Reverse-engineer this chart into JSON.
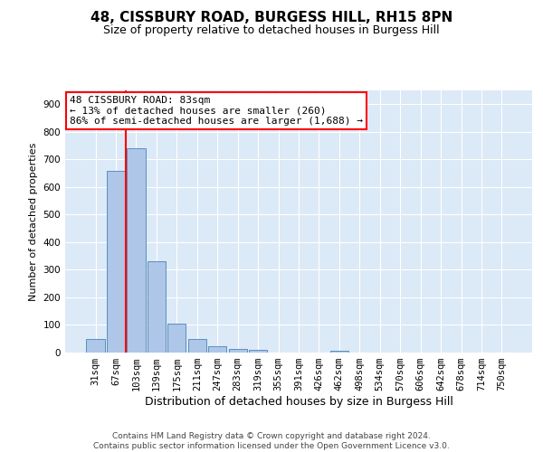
{
  "title": "48, CISSBURY ROAD, BURGESS HILL, RH15 8PN",
  "subtitle": "Size of property relative to detached houses in Burgess Hill",
  "xlabel": "Distribution of detached houses by size in Burgess Hill",
  "ylabel": "Number of detached properties",
  "categories": [
    "31sqm",
    "67sqm",
    "103sqm",
    "139sqm",
    "175sqm",
    "211sqm",
    "247sqm",
    "283sqm",
    "319sqm",
    "355sqm",
    "391sqm",
    "426sqm",
    "462sqm",
    "498sqm",
    "534sqm",
    "570sqm",
    "606sqm",
    "642sqm",
    "678sqm",
    "714sqm",
    "750sqm"
  ],
  "values": [
    48,
    660,
    740,
    330,
    105,
    48,
    22,
    13,
    10,
    0,
    0,
    0,
    5,
    0,
    0,
    0,
    0,
    0,
    0,
    0,
    0
  ],
  "bar_color": "#aec6e8",
  "bar_edge_color": "#5a8fbd",
  "vline_x": 1.5,
  "vline_color": "red",
  "annotation_text": "48 CISSBURY ROAD: 83sqm\n← 13% of detached houses are smaller (260)\n86% of semi-detached houses are larger (1,688) →",
  "annotation_box_color": "white",
  "annotation_edge_color": "red",
  "footer": "Contains HM Land Registry data © Crown copyright and database right 2024.\nContains public sector information licensed under the Open Government Licence v3.0.",
  "ylim": [
    0,
    950
  ],
  "yticks": [
    0,
    100,
    200,
    300,
    400,
    500,
    600,
    700,
    800,
    900
  ],
  "background_color": "#dce9f7",
  "title_fontsize": 11,
  "subtitle_fontsize": 9,
  "xlabel_fontsize": 9,
  "ylabel_fontsize": 8,
  "tick_fontsize": 7.5,
  "annotation_fontsize": 8,
  "footer_fontsize": 6.5
}
